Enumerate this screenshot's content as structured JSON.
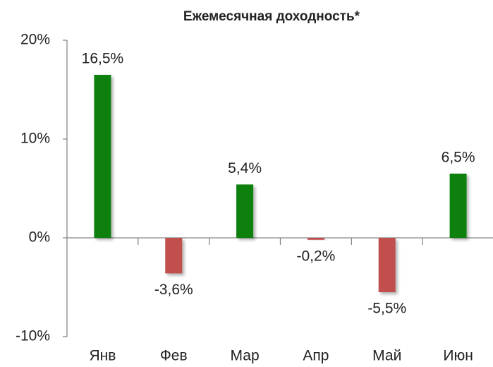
{
  "chart_data": {
    "type": "bar",
    "title": "Ежемесячная доходность*",
    "categories": [
      "Янв",
      "Фев",
      "Мар",
      "Апр",
      "Май",
      "Июн"
    ],
    "values": [
      16.5,
      -3.6,
      5.4,
      -0.2,
      -5.5,
      6.5
    ],
    "value_labels": [
      "16,5%",
      "-3,6%",
      "5,4%",
      "-0,2%",
      "-5,5%",
      "6,5%"
    ],
    "colors": [
      "#0b800b",
      "#c0504d",
      "#0b800b",
      "#c0504d",
      "#c0504d",
      "#0b800b"
    ],
    "ylim": [
      -10,
      20
    ],
    "yticks": [
      {
        "value": -10,
        "label": "-10%"
      },
      {
        "value": 0,
        "label": "0%"
      },
      {
        "value": 10,
        "label": "10%"
      },
      {
        "value": 20,
        "label": "20%"
      }
    ],
    "grid": false
  }
}
